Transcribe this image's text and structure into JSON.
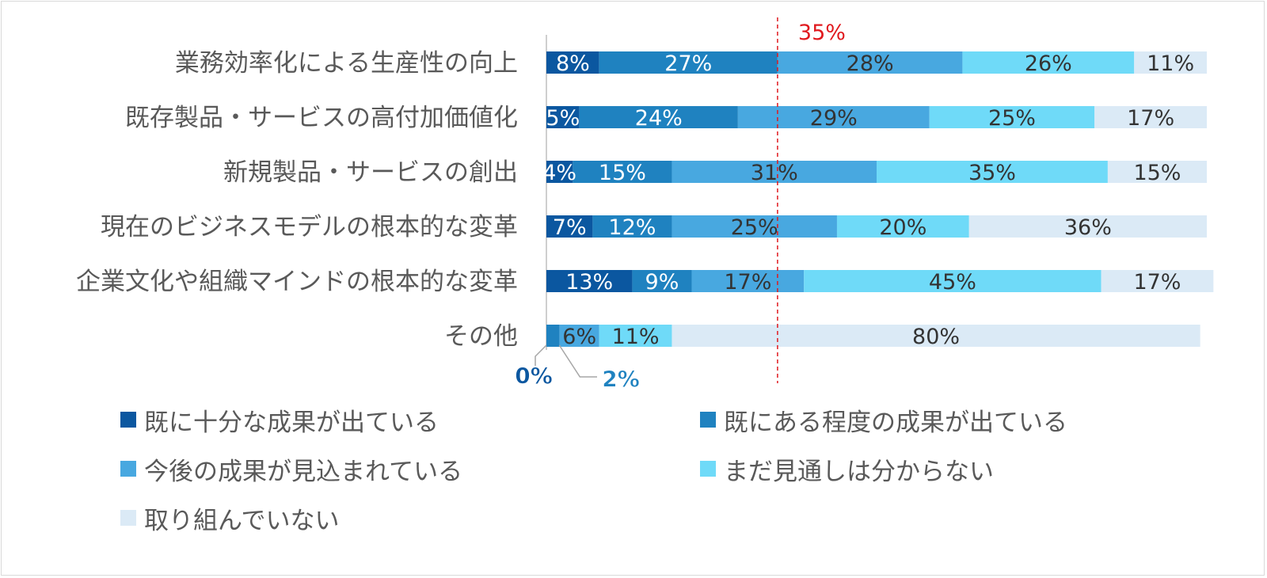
{
  "chart_data": {
    "type": "bar",
    "orientation": "horizontal",
    "stacked": true,
    "percent": true,
    "categories": [
      "業務効率化による生産性の向上",
      "既存製品・サービスの高付加価値化",
      "新規製品・サービスの創出",
      "現在のビジネスモデルの根本的な変革",
      "企業文化や組織マインドの根本的な変革",
      "その他"
    ],
    "series": [
      {
        "name": "既に十分な成果が出ている",
        "color": "#0b57a0",
        "label_color": "#ffffff",
        "values": [
          8,
          5,
          4,
          7,
          13,
          0
        ]
      },
      {
        "name": "既にある程度の成果が出ている",
        "color": "#1f82c0",
        "label_color": "#ffffff",
        "values": [
          27,
          24,
          15,
          12,
          9,
          2
        ]
      },
      {
        "name": "今後の成果が見込まれている",
        "color": "#48a8e0",
        "label_color": "#333333",
        "values": [
          28,
          29,
          31,
          25,
          17,
          6
        ]
      },
      {
        "name": "まだ見通しは分からない",
        "color": "#6fdaf8",
        "label_color": "#333333",
        "values": [
          26,
          25,
          35,
          20,
          45,
          11
        ]
      },
      {
        "name": "取り組んでいない",
        "color": "#dbeaf6",
        "label_color": "#333333",
        "values": [
          11,
          17,
          15,
          36,
          17,
          80
        ]
      }
    ],
    "xlim": [
      0,
      100
    ],
    "reference_line": {
      "value": 35,
      "label": "35%",
      "color": "#e0191e"
    },
    "callouts": [
      {
        "category": 5,
        "series": 0,
        "label": "0%",
        "color": "#0b57a0"
      },
      {
        "category": 5,
        "series": 1,
        "label": "2%",
        "color": "#1f82c0"
      }
    ],
    "legend_placement": "bottom",
    "grid": false
  }
}
